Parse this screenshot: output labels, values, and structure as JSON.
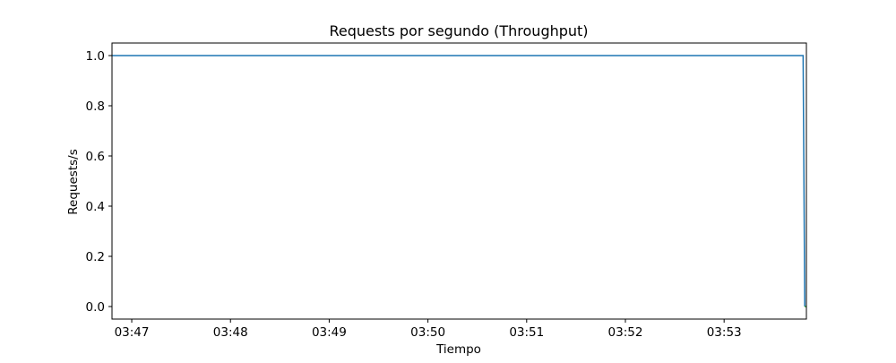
{
  "chart_data": {
    "type": "line",
    "title": "Requests por segundo (Throughput)",
    "xlabel": "Tiempo",
    "ylabel": "Requests/s",
    "x_ticks": [
      "03:47",
      "03:48",
      "03:49",
      "03:50",
      "03:51",
      "03:52",
      "03:53"
    ],
    "y_ticks": [
      "0.0",
      "0.2",
      "0.4",
      "0.6",
      "0.8",
      "1.0"
    ],
    "xlim": [
      "03:46:48",
      "03:53:50"
    ],
    "ylim": [
      -0.05,
      1.05
    ],
    "grid": false,
    "series": [
      {
        "color": "#1f77b4",
        "x": [
          "03:46:48",
          "03:53:48",
          "03:53:49"
        ],
        "y": [
          1,
          1,
          0
        ]
      },
      {
        "color": "#2ca02c",
        "x": [
          "03:53:49",
          "03:53:50"
        ],
        "y": [
          0,
          0
        ]
      }
    ]
  }
}
